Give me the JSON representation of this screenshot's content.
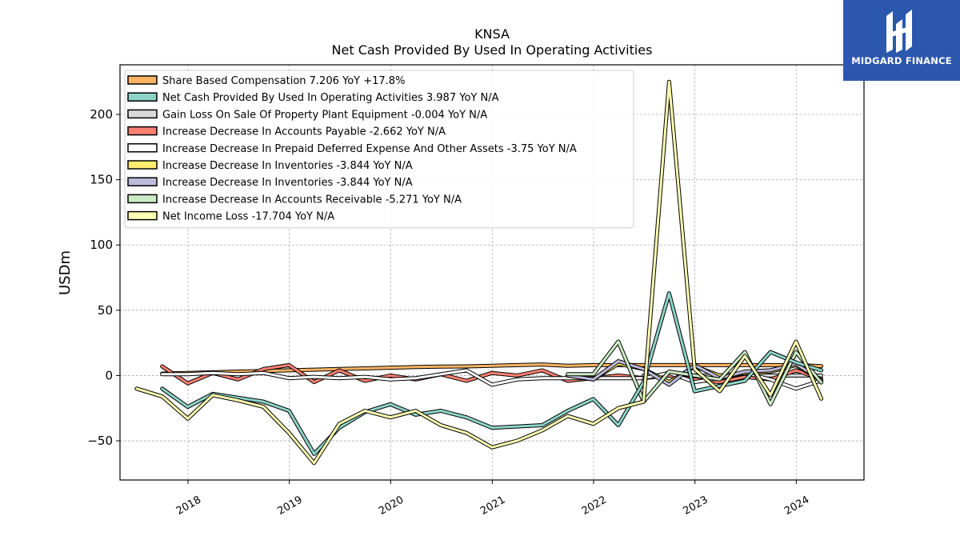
{
  "watermark": {
    "brand": "MIDGARD FINANCE"
  },
  "chart_data": {
    "type": "line",
    "title": "KNSA",
    "subtitle": "Net Cash Provided By Used In Operating Activities",
    "ylabel": "USDm",
    "xlabel": "",
    "xlim": [
      "2017-05-01",
      "2024-09-01"
    ],
    "ylim": [
      -80,
      238
    ],
    "yticks": [
      -50,
      0,
      50,
      100,
      150,
      200
    ],
    "xticks": [
      "2018",
      "2019",
      "2020",
      "2021",
      "2022",
      "2023",
      "2024"
    ],
    "grid": true,
    "legend_position": "top-left",
    "series": [
      {
        "name": "Share Based Compensation  7.206 YoY +17.8%",
        "color": "#fdb462",
        "x": [
          "2017-09-30",
          "2017-12-31",
          "2018-03-31",
          "2018-06-30",
          "2018-09-30",
          "2018-12-31",
          "2019-03-31",
          "2019-06-30",
          "2019-09-30",
          "2019-12-31",
          "2020-03-31",
          "2020-06-30",
          "2020-09-30",
          "2020-12-31",
          "2021-03-31",
          "2021-06-30",
          "2021-09-30",
          "2021-12-31",
          "2022-03-31",
          "2022-06-30",
          "2022-09-30",
          "2022-12-31",
          "2023-03-31",
          "2023-06-30",
          "2023-09-30",
          "2023-12-31",
          "2024-03-31"
        ],
        "y": [
          1.5,
          2,
          2.5,
          3,
          3.5,
          4,
          4.5,
          5,
          5.5,
          6,
          6.5,
          6.8,
          7,
          7.5,
          8,
          8.5,
          7.5,
          8,
          8,
          8,
          8,
          8,
          8,
          8,
          8,
          8,
          7.2
        ]
      },
      {
        "name": "Net Cash Provided By Used In Operating Activities  3.987 YoY N/A",
        "color": "#8dd3c7",
        "x": [
          "2017-09-30",
          "2017-12-31",
          "2018-03-31",
          "2018-06-30",
          "2018-09-30",
          "2018-12-31",
          "2019-03-31",
          "2019-06-30",
          "2019-09-30",
          "2019-12-31",
          "2020-03-31",
          "2020-06-30",
          "2020-09-30",
          "2020-12-31",
          "2021-03-31",
          "2021-06-30",
          "2021-09-30",
          "2021-12-31",
          "2022-03-31",
          "2022-06-30",
          "2022-09-30",
          "2022-12-31",
          "2023-03-31",
          "2023-06-30",
          "2023-09-30",
          "2023-12-31",
          "2024-03-31"
        ],
        "y": [
          -10,
          -24,
          -14,
          -17,
          -20,
          -27,
          -60,
          -40,
          -28,
          -22,
          -30,
          -27,
          -32,
          -40,
          -39,
          -38,
          -27,
          -18,
          -38,
          -5,
          63,
          -12,
          -8,
          -4,
          18,
          10,
          4
        ]
      },
      {
        "name": "Gain Loss On Sale Of Property Plant Equipment  -0.004 YoY N/A",
        "color": "#d9d9d9",
        "x": [
          "2022-06-30",
          "2022-09-30",
          "2022-12-31",
          "2023-03-31",
          "2023-06-30",
          "2023-09-30",
          "2023-12-31",
          "2024-03-31"
        ],
        "y": [
          0,
          0,
          0,
          0,
          0,
          0,
          0,
          0
        ]
      },
      {
        "name": "Increase Decrease In Accounts Payable  -2.662 YoY N/A",
        "color": "#fb8072",
        "x": [
          "2017-09-30",
          "2017-12-31",
          "2018-03-31",
          "2018-06-30",
          "2018-09-30",
          "2018-12-31",
          "2019-03-31",
          "2019-06-30",
          "2019-09-30",
          "2019-12-31",
          "2020-03-31",
          "2020-06-30",
          "2020-09-30",
          "2020-12-31",
          "2021-03-31",
          "2021-06-30",
          "2021-09-30",
          "2021-12-31",
          "2022-03-31",
          "2022-06-30",
          "2022-09-30",
          "2022-12-31",
          "2023-03-31",
          "2023-06-30",
          "2023-09-30",
          "2023-12-31",
          "2024-03-31"
        ],
        "y": [
          7,
          -6,
          2,
          -3,
          5,
          8,
          -5,
          4,
          -4,
          0,
          -3,
          1,
          -4,
          2,
          0,
          4,
          -4,
          -2,
          0,
          -2,
          0,
          -3,
          -5,
          -1,
          -3,
          4,
          -2.7
        ]
      },
      {
        "name": "Increase Decrease In Prepaid Deferred Expense And Other Assets  -3.75 YoY N/A",
        "color": "#ffffff",
        "x": [
          "2017-09-30",
          "2017-12-31",
          "2018-03-31",
          "2018-06-30",
          "2018-09-30",
          "2018-12-31",
          "2019-03-31",
          "2019-06-30",
          "2019-09-30",
          "2019-12-31",
          "2020-03-31",
          "2020-06-30",
          "2020-09-30",
          "2020-12-31",
          "2021-03-31",
          "2021-06-30",
          "2021-09-30",
          "2021-12-31",
          "2022-03-31",
          "2022-06-30",
          "2022-09-30",
          "2022-12-31",
          "2023-03-31",
          "2023-06-30",
          "2023-09-30",
          "2023-12-31",
          "2024-03-31"
        ],
        "y": [
          1,
          1,
          2,
          1,
          2,
          -2,
          -1,
          -2,
          -1,
          -3,
          -2,
          1,
          4,
          -7,
          -3,
          -2,
          -2,
          -2,
          -2,
          -2,
          2,
          -5,
          -2,
          2,
          -3,
          -10,
          -3.75
        ]
      },
      {
        "name": "Increase Decrease In Inventories  -3.844 YoY N/A",
        "color": "#ffed6f",
        "x": [
          "2021-09-30",
          "2021-12-31",
          "2022-03-31",
          "2022-06-30",
          "2022-09-30",
          "2022-12-31",
          "2023-03-31",
          "2023-06-30",
          "2023-09-30",
          "2023-12-31",
          "2024-03-31"
        ],
        "y": [
          0,
          -3,
          9,
          5,
          -5,
          7,
          0,
          2,
          3,
          8,
          -3.8
        ]
      },
      {
        "name": "Increase Decrease In Inventories  -3.844 YoY N/A",
        "color": "#bebada",
        "x": [
          "2021-09-30",
          "2021-12-31",
          "2022-03-31",
          "2022-06-30",
          "2022-09-30",
          "2022-12-31",
          "2023-03-31",
          "2023-06-30",
          "2023-09-30",
          "2023-12-31",
          "2024-03-31"
        ],
        "y": [
          0,
          -3,
          11,
          5,
          -7,
          8,
          -2,
          3,
          4,
          9,
          -3.8
        ]
      },
      {
        "name": "Increase Decrease In Accounts Receivable  -5.271 YoY N/A",
        "color": "#ccebc5",
        "x": [
          "2021-09-30",
          "2021-12-31",
          "2022-03-31",
          "2022-06-30",
          "2022-09-30",
          "2022-12-31",
          "2023-03-31",
          "2023-06-30",
          "2023-09-30",
          "2023-12-31",
          "2024-03-31"
        ],
        "y": [
          1,
          1,
          26,
          -20,
          3,
          0,
          -3,
          18,
          -22,
          18,
          -5.3
        ]
      },
      {
        "name": "Net Income Loss  -17.704 YoY N/A",
        "color": "#ffffb3",
        "x": [
          "2017-06-30",
          "2017-09-30",
          "2017-12-31",
          "2018-03-31",
          "2018-06-30",
          "2018-09-30",
          "2018-12-31",
          "2019-03-31",
          "2019-06-30",
          "2019-09-30",
          "2019-12-31",
          "2020-03-31",
          "2020-06-30",
          "2020-09-30",
          "2020-12-31",
          "2021-03-31",
          "2021-06-30",
          "2021-09-30",
          "2021-12-31",
          "2022-03-31",
          "2022-06-30",
          "2022-09-30",
          "2022-12-31",
          "2023-03-31",
          "2023-06-30",
          "2023-09-30",
          "2023-12-31",
          "2024-03-31"
        ],
        "y": [
          -10,
          -16,
          -33,
          -15,
          -19,
          -24,
          -44,
          -67,
          -37,
          -27,
          -32,
          -27,
          -38,
          -44,
          -55,
          -50,
          -42,
          -31,
          -37,
          -25,
          -20,
          225,
          5,
          -12,
          15,
          -15,
          26,
          -17.7
        ]
      }
    ]
  }
}
